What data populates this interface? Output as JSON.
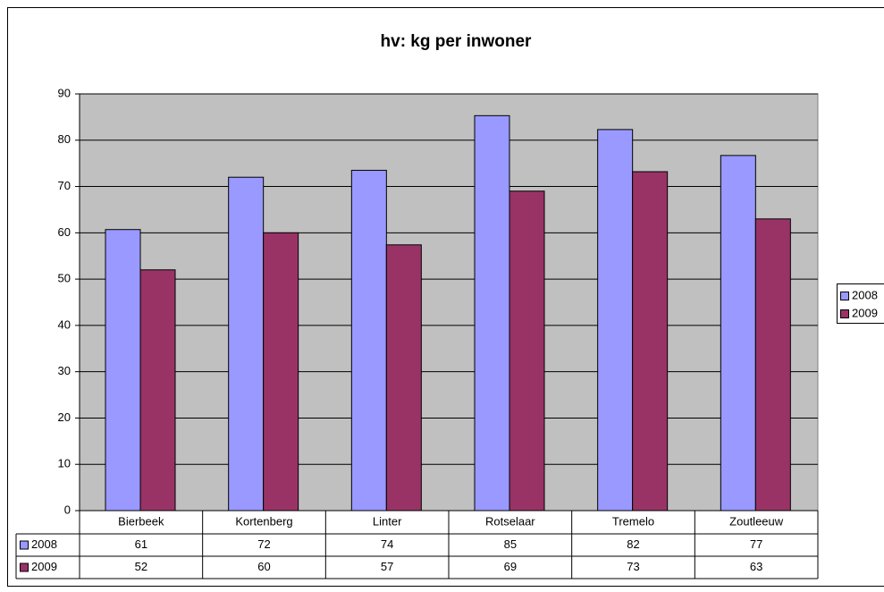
{
  "chart_data": {
    "type": "bar",
    "title": "hv: kg per inwoner",
    "categories": [
      "Bierbeek",
      "Kortenberg",
      "Linter",
      "Rotselaar",
      "Tremelo",
      "Zoutleeuw"
    ],
    "series": [
      {
        "name": "2008",
        "color": "#9999ff",
        "values": [
          60.7,
          72,
          73.5,
          85.3,
          82.3,
          76.7
        ],
        "value_labels": [
          "61",
          "72",
          "74",
          "85",
          "82",
          "77"
        ]
      },
      {
        "name": "2009",
        "color": "#993366",
        "values": [
          52,
          60,
          57.4,
          69,
          73.2,
          63
        ],
        "value_labels": [
          "52",
          "60",
          "57",
          "69",
          "73",
          "63"
        ]
      }
    ],
    "ylim": [
      0,
      90
    ],
    "yticks": [
      0,
      10,
      20,
      30,
      40,
      50,
      60,
      70,
      80,
      90
    ],
    "grid": true,
    "legend": "right"
  }
}
